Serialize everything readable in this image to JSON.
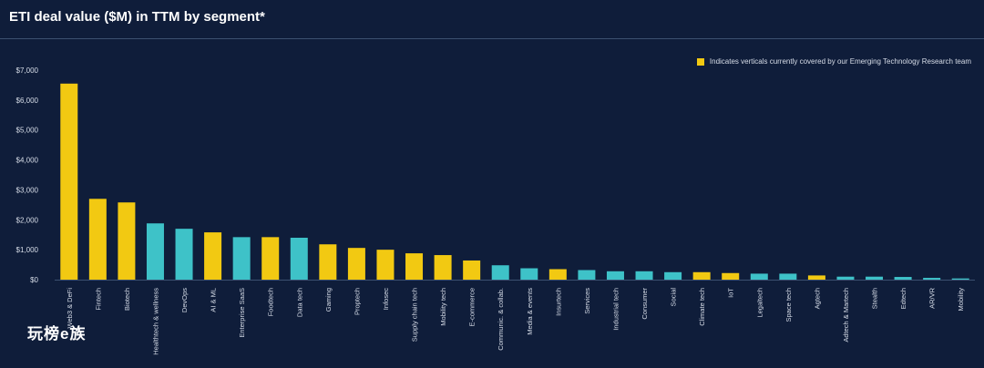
{
  "header": {
    "title": "ETI deal value ($M) in TTM by segment*"
  },
  "legend": {
    "text": "Indicates verticals currently covered by our Emerging Technology Research team"
  },
  "watermark": {
    "text": "玩榜e族"
  },
  "colors": {
    "covered": "#f2c912",
    "other": "#3ec2c8",
    "background": "#0f1d3a",
    "axis_text": "#d7dde8"
  },
  "chart_data": {
    "type": "bar",
    "categories": [
      "Web3 & DeFi",
      "Fintech",
      "Biotech",
      "Healthtech & wellness",
      "DevOps",
      "AI & ML",
      "Enterprise SaaS",
      "Foodtech",
      "Data tech",
      "Gaming",
      "Proptech",
      "Infosec",
      "Supply chain tech",
      "Mobility tech",
      "E-commerce",
      "Communic. & collab.",
      "Media & events",
      "Insurtech",
      "Services",
      "Industrial tech",
      "Consumer",
      "Social",
      "Climate tech",
      "IoT",
      "Legaltech",
      "Space tech",
      "Agtech",
      "Adtech & Martech",
      "Stealth",
      "Edtech",
      "AR/VR",
      "Mobility"
    ],
    "values": [
      6550,
      2700,
      2580,
      1880,
      1700,
      1580,
      1420,
      1420,
      1400,
      1180,
      1060,
      1000,
      880,
      820,
      640,
      480,
      380,
      350,
      320,
      280,
      280,
      250,
      250,
      220,
      200,
      200,
      140,
      100,
      100,
      90,
      60,
      40
    ],
    "covered": [
      true,
      true,
      true,
      false,
      false,
      true,
      false,
      true,
      false,
      true,
      true,
      true,
      true,
      true,
      true,
      false,
      false,
      true,
      false,
      false,
      false,
      false,
      true,
      true,
      false,
      false,
      true,
      false,
      false,
      false,
      false,
      false
    ],
    "yticks": [
      "$0",
      "$1,000",
      "$2,000",
      "$3,000",
      "$4,000",
      "$5,000",
      "$6,000",
      "$7,000"
    ],
    "ylim": [
      0,
      7000
    ],
    "xlabel": "",
    "ylabel": "",
    "grid": false,
    "legend_position": "top-right"
  }
}
